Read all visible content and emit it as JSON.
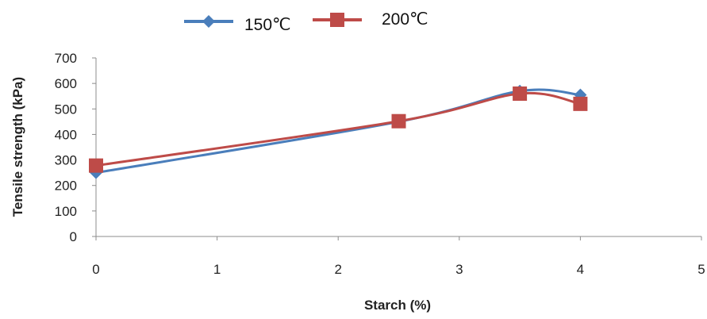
{
  "chart_data": {
    "type": "line",
    "title": "",
    "xlabel": "Starch (%)",
    "ylabel": "Tensile strength (kPa)",
    "xlim": [
      0,
      5
    ],
    "ylim": [
      0,
      700
    ],
    "xticks": [
      0,
      1,
      2,
      3,
      4,
      5
    ],
    "yticks": [
      0,
      100,
      200,
      300,
      400,
      500,
      600,
      700
    ],
    "grid": false,
    "legend_position": "top",
    "series": [
      {
        "name": "150℃",
        "color": "#4A7EBB",
        "marker": "diamond",
        "x": [
          0,
          2.5,
          3.5,
          4
        ],
        "y": [
          250,
          450,
          570,
          555
        ]
      },
      {
        "name": "200℃",
        "color": "#BE4B48",
        "marker": "square",
        "x": [
          0,
          2.5,
          3.5,
          4
        ],
        "y": [
          278,
          452,
          560,
          520
        ]
      }
    ]
  }
}
